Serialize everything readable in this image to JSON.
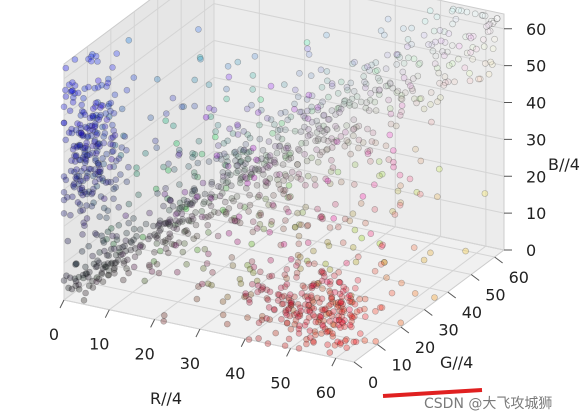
{
  "chart_data": {
    "type": "scatter",
    "projection": "3d",
    "xlabel": "R//4",
    "ylabel": "G//4",
    "zlabel": "B//4",
    "xlim": [
      0,
      64
    ],
    "ylim": [
      0,
      64
    ],
    "zlim": [
      0,
      64
    ],
    "grid": true,
    "legend": "none",
    "x_ticks": [
      "0",
      "10",
      "20",
      "30",
      "40",
      "50",
      "60"
    ],
    "y_ticks": [
      "0",
      "10",
      "20",
      "30",
      "40",
      "50",
      "60"
    ],
    "z_ticks": [
      "0",
      "10",
      "20",
      "30",
      "40",
      "50",
      "60"
    ],
    "marker_alpha": 0.3,
    "clusters": [
      {
        "region": "dark-to-light diagonal",
        "from": [
          2,
          2,
          4
        ],
        "to": [
          62,
          62,
          62
        ],
        "color": "#9a9070"
      },
      {
        "region": "blue plume",
        "center": [
          3,
          5,
          40
        ],
        "spread": [
          3,
          5,
          12
        ],
        "color": "#1e4a9a"
      },
      {
        "region": "red cluster",
        "center": [
          52,
          8,
          8
        ],
        "spread": [
          6,
          6,
          5
        ],
        "color": "#c8202c"
      },
      {
        "region": "scattered mid tones",
        "center": [
          30,
          25,
          25
        ],
        "spread": [
          18,
          15,
          15
        ],
        "color": "#6a6a60"
      }
    ]
  },
  "watermark": {
    "text": "CSDN @大飞攻城狮",
    "underline_color": "#e02020"
  }
}
